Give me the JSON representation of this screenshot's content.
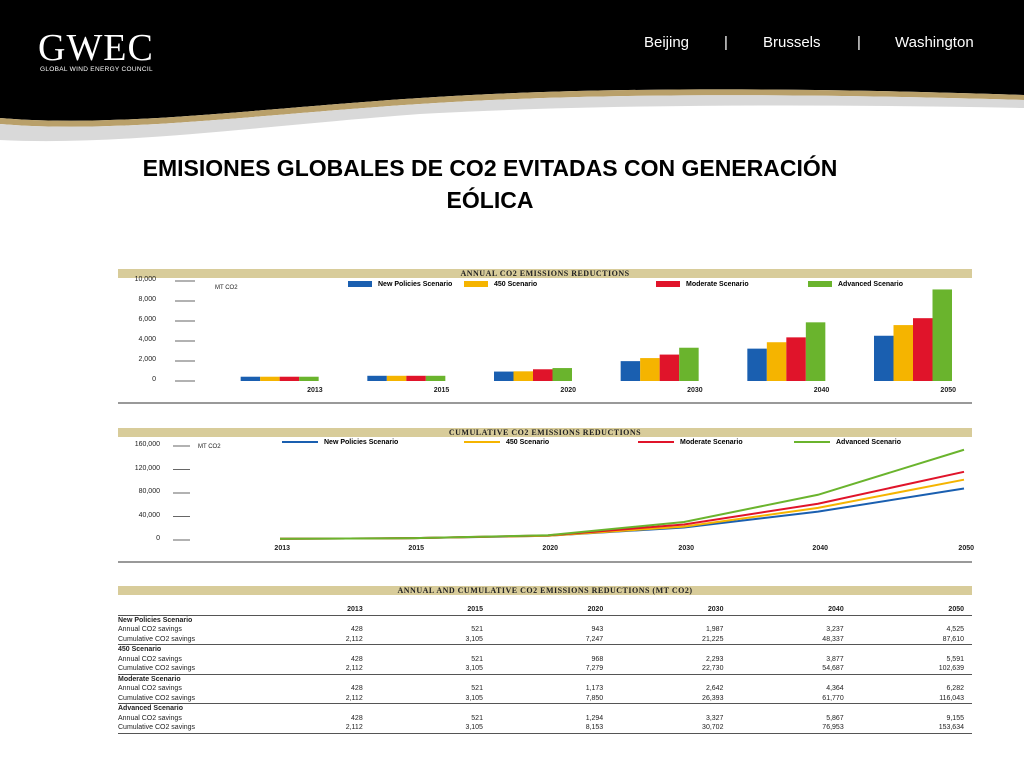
{
  "header": {
    "logo": "GWEC",
    "logo_sub": "GLOBAL WIND ENERGY COUNCIL",
    "cities": [
      "Beijing",
      "|",
      "Brussels",
      "|",
      "Washington"
    ]
  },
  "title_line1": "EMISIONES  GLOBALES DE CO2 EVITADAS CON GENERACIÓN",
  "title_line2": "EÓLICA",
  "colors": {
    "New Policies Scenario": "#1a5fb0",
    "450 Scenario": "#f5b400",
    "Moderate Scenario": "#e0142a",
    "Advanced Scenario": "#6ab42d",
    "band": "#d8cc9a"
  },
  "chart_data": [
    {
      "type": "bar",
      "title": "ANNUAL CO2 EMISSIONS REDUCTIONS",
      "unit": "MT CO2",
      "categories": [
        "2013",
        "2015",
        "2020",
        "2030",
        "2040",
        "2050"
      ],
      "yticks": [
        "10,000",
        "8,000",
        "6,000",
        "4,000",
        "2,000",
        "0"
      ],
      "ylim": [
        0,
        10000
      ],
      "legend_position": "top",
      "series": [
        {
          "name": "New Policies Scenario",
          "values": [
            428,
            521,
            943,
            1987,
            3237,
            4525
          ]
        },
        {
          "name": "450 Scenario",
          "values": [
            428,
            521,
            968,
            2293,
            3877,
            5591
          ]
        },
        {
          "name": "Moderate Scenario",
          "values": [
            428,
            521,
            1173,
            2642,
            4364,
            6282
          ]
        },
        {
          "name": "Advanced Scenario",
          "values": [
            428,
            521,
            1294,
            3327,
            5867,
            9155
          ]
        }
      ]
    },
    {
      "type": "line",
      "title": "CUMULATIVE CO2 EMISSIONS REDUCTIONS",
      "unit": "MT CO2",
      "categories": [
        "2013",
        "2015",
        "2020",
        "2030",
        "2040",
        "2050"
      ],
      "yticks": [
        "160,000",
        "120,000",
        "80,000",
        "40,000",
        "0"
      ],
      "ylim": [
        0,
        160000
      ],
      "legend_position": "top",
      "series": [
        {
          "name": "New Policies Scenario",
          "values": [
            2112,
            3105,
            7247,
            21225,
            48337,
            87610
          ]
        },
        {
          "name": "450 Scenario",
          "values": [
            2112,
            3105,
            7279,
            22730,
            54687,
            102639
          ]
        },
        {
          "name": "Moderate Scenario",
          "values": [
            2112,
            3105,
            7850,
            26393,
            61770,
            116043
          ]
        },
        {
          "name": "Advanced Scenario",
          "values": [
            2112,
            3105,
            8153,
            30702,
            76953,
            153634
          ]
        }
      ]
    },
    {
      "type": "table",
      "title": "ANNUAL AND CUMULATIVE CO2 EMISSIONS REDUCTIONS (MT CO2)",
      "columns": [
        "2013",
        "2015",
        "2020",
        "2030",
        "2040",
        "2050"
      ],
      "groups": [
        {
          "name": "New Policies Scenario",
          "rows": [
            {
              "label": "Annual CO2 savings",
              "values": [
                "428",
                "521",
                "943",
                "1,987",
                "3,237",
                "4,525"
              ]
            },
            {
              "label": "Cumulative CO2 savings",
              "values": [
                "2,112",
                "3,105",
                "7,247",
                "21,225",
                "48,337",
                "87,610"
              ]
            }
          ]
        },
        {
          "name": "450 Scenario",
          "rows": [
            {
              "label": "Annual CO2 savings",
              "values": [
                "428",
                "521",
                "968",
                "2,293",
                "3,877",
                "5,591"
              ]
            },
            {
              "label": "Cumulative CO2 savings",
              "values": [
                "2,112",
                "3,105",
                "7,279",
                "22,730",
                "54,687",
                "102,639"
              ]
            }
          ]
        },
        {
          "name": "Moderate Scenario",
          "rows": [
            {
              "label": "Annual CO2 savings",
              "values": [
                "428",
                "521",
                "1,173",
                "2,642",
                "4,364",
                "6,282"
              ]
            },
            {
              "label": "Cumulative CO2 savings",
              "values": [
                "2,112",
                "3,105",
                "7,850",
                "26,393",
                "61,770",
                "116,043"
              ]
            }
          ]
        },
        {
          "name": "Advanced Scenario",
          "rows": [
            {
              "label": "Annual CO2 savings",
              "values": [
                "428",
                "521",
                "1,294",
                "3,327",
                "5,867",
                "9,155"
              ]
            },
            {
              "label": "Cumulative CO2 savings",
              "values": [
                "2,112",
                "3,105",
                "8,153",
                "30,702",
                "76,953",
                "153,634"
              ]
            }
          ]
        }
      ]
    }
  ]
}
